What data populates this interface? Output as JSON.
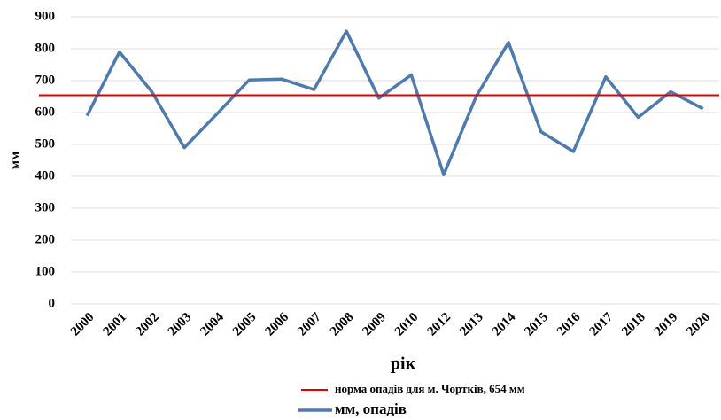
{
  "chart_data": {
    "type": "line",
    "x_label": "рік",
    "y_label": "мм",
    "categories": [
      "2000",
      "2001",
      "2002",
      "2003",
      "2004",
      "2005",
      "2006",
      "2007",
      "2008",
      "2009",
      "2010",
      "2012",
      "2013",
      "2014",
      "2015",
      "2016",
      "2017",
      "2018",
      "2019",
      "2020"
    ],
    "series": [
      {
        "name": "мм, опадів",
        "color": "#4f7bac",
        "values": [
          590,
          790,
          665,
          490,
          595,
          702,
          705,
          672,
          855,
          645,
          718,
          405,
          650,
          820,
          540,
          478,
          712,
          585,
          665,
          612
        ]
      }
    ],
    "reference_line": {
      "name": "норма опадів для м. Чортків, 654 мм",
      "value": 654,
      "color": "#e00000"
    },
    "ylim": [
      0,
      900
    ],
    "yticks": [
      0,
      100,
      200,
      300,
      400,
      500,
      600,
      700,
      800,
      900
    ],
    "grid": true
  }
}
